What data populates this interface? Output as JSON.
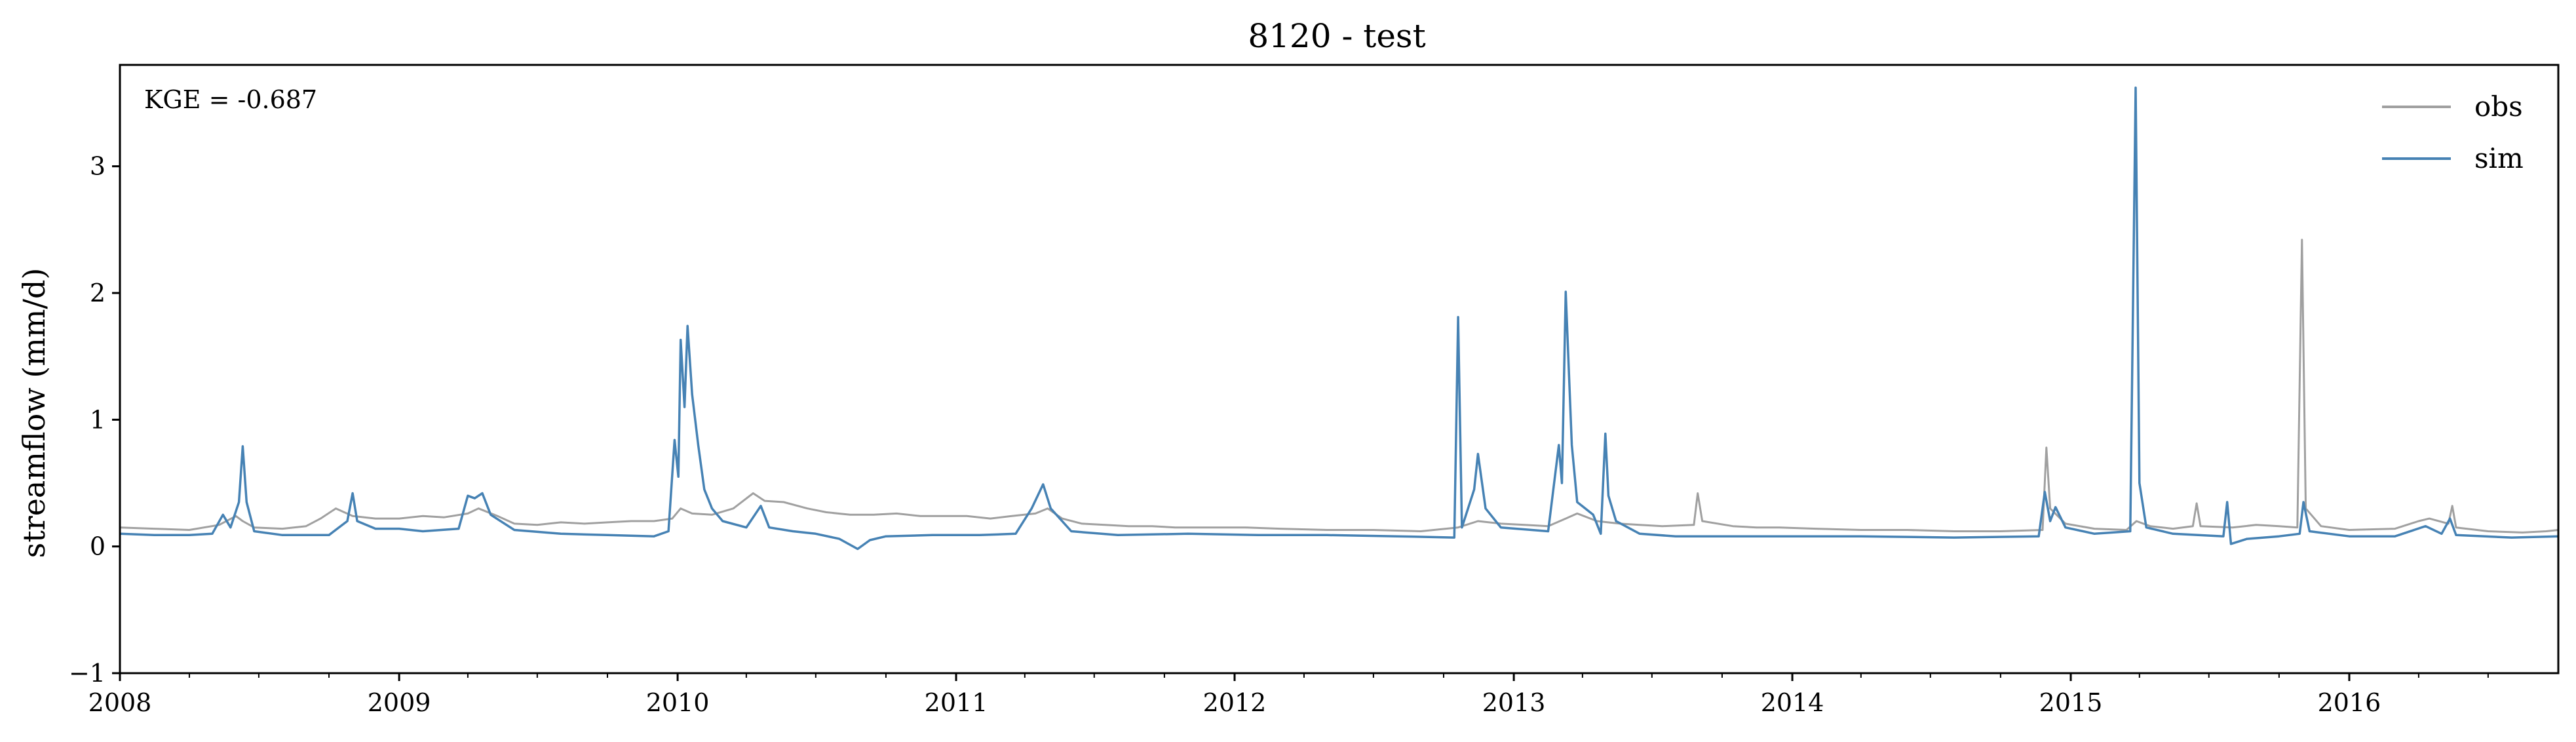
{
  "chart_data": {
    "type": "line",
    "title": "8120 - test",
    "xlabel": "",
    "ylabel": "streamflow (mm/d)",
    "annotation": "KGE = -0.687",
    "xlim": [
      "2008-01-01",
      "2016-10-01"
    ],
    "ylim": [
      -1,
      3.8
    ],
    "x_ticks": [
      "2008",
      "2009",
      "2010",
      "2011",
      "2012",
      "2013",
      "2014",
      "2015",
      "2016"
    ],
    "y_ticks": [
      -1,
      0,
      1,
      2,
      3
    ],
    "y_tick_labels": [
      "−1",
      "0",
      "1",
      "2",
      "3"
    ],
    "grid": false,
    "legend_position": "top-right",
    "series": [
      {
        "name": "obs",
        "color": "#a0a0a0",
        "points": [
          [
            "2008-01-01",
            0.15
          ],
          [
            "2008-02-15",
            0.14
          ],
          [
            "2008-04-01",
            0.13
          ],
          [
            "2008-05-10",
            0.17
          ],
          [
            "2008-06-01",
            0.24
          ],
          [
            "2008-06-10",
            0.2
          ],
          [
            "2008-06-25",
            0.15
          ],
          [
            "2008-08-01",
            0.14
          ],
          [
            "2008-09-01",
            0.16
          ],
          [
            "2008-09-20",
            0.22
          ],
          [
            "2008-10-10",
            0.3
          ],
          [
            "2008-11-01",
            0.24
          ],
          [
            "2008-12-01",
            0.22
          ],
          [
            "2009-01-01",
            0.22
          ],
          [
            "2009-02-01",
            0.24
          ],
          [
            "2009-03-01",
            0.23
          ],
          [
            "2009-04-01",
            0.26
          ],
          [
            "2009-04-15",
            0.3
          ],
          [
            "2009-05-10",
            0.24
          ],
          [
            "2009-06-01",
            0.18
          ],
          [
            "2009-07-01",
            0.17
          ],
          [
            "2009-08-01",
            0.19
          ],
          [
            "2009-09-01",
            0.18
          ],
          [
            "2009-10-01",
            0.19
          ],
          [
            "2009-11-01",
            0.2
          ],
          [
            "2009-12-01",
            0.2
          ],
          [
            "2009-12-25",
            0.22
          ],
          [
            "2010-01-05",
            0.3
          ],
          [
            "2010-01-20",
            0.26
          ],
          [
            "2010-02-15",
            0.25
          ],
          [
            "2010-03-15",
            0.3
          ],
          [
            "2010-04-10",
            0.42
          ],
          [
            "2010-04-25",
            0.36
          ],
          [
            "2010-05-20",
            0.35
          ],
          [
            "2010-06-20",
            0.3
          ],
          [
            "2010-07-15",
            0.27
          ],
          [
            "2010-08-15",
            0.25
          ],
          [
            "2010-09-15",
            0.25
          ],
          [
            "2010-10-15",
            0.26
          ],
          [
            "2010-11-15",
            0.24
          ],
          [
            "2010-12-15",
            0.24
          ],
          [
            "2011-01-15",
            0.24
          ],
          [
            "2011-02-15",
            0.22
          ],
          [
            "2011-03-15",
            0.24
          ],
          [
            "2011-04-15",
            0.26
          ],
          [
            "2011-05-01",
            0.3
          ],
          [
            "2011-05-20",
            0.22
          ],
          [
            "2011-06-15",
            0.18
          ],
          [
            "2011-07-15",
            0.17
          ],
          [
            "2011-08-15",
            0.16
          ],
          [
            "2011-09-15",
            0.16
          ],
          [
            "2011-10-15",
            0.15
          ],
          [
            "2011-11-15",
            0.15
          ],
          [
            "2011-12-15",
            0.15
          ],
          [
            "2012-01-15",
            0.15
          ],
          [
            "2012-03-01",
            0.14
          ],
          [
            "2012-05-01",
            0.13
          ],
          [
            "2012-07-01",
            0.13
          ],
          [
            "2012-09-01",
            0.12
          ],
          [
            "2012-10-20",
            0.15
          ],
          [
            "2012-11-15",
            0.2
          ],
          [
            "2012-12-15",
            0.18
          ],
          [
            "2013-01-15",
            0.17
          ],
          [
            "2013-02-15",
            0.16
          ],
          [
            "2013-03-10",
            0.22
          ],
          [
            "2013-03-25",
            0.26
          ],
          [
            "2013-04-20",
            0.2
          ],
          [
            "2013-05-20",
            0.18
          ],
          [
            "2013-06-15",
            0.17
          ],
          [
            "2013-07-15",
            0.16
          ],
          [
            "2013-08-25",
            0.17
          ],
          [
            "2013-08-30",
            0.42
          ],
          [
            "2013-09-05",
            0.2
          ],
          [
            "2013-10-15",
            0.16
          ],
          [
            "2013-11-15",
            0.15
          ],
          [
            "2013-12-15",
            0.15
          ],
          [
            "2014-02-01",
            0.14
          ],
          [
            "2014-04-01",
            0.13
          ],
          [
            "2014-06-01",
            0.13
          ],
          [
            "2014-08-01",
            0.12
          ],
          [
            "2014-10-01",
            0.12
          ],
          [
            "2014-11-25",
            0.13
          ],
          [
            "2014-11-30",
            0.78
          ],
          [
            "2014-12-05",
            0.3
          ],
          [
            "2014-12-25",
            0.18
          ],
          [
            "2015-02-01",
            0.14
          ],
          [
            "2015-03-15",
            0.13
          ],
          [
            "2015-03-28",
            0.2
          ],
          [
            "2015-04-15",
            0.16
          ],
          [
            "2015-05-15",
            0.14
          ],
          [
            "2015-06-10",
            0.16
          ],
          [
            "2015-06-15",
            0.34
          ],
          [
            "2015-06-20",
            0.16
          ],
          [
            "2015-08-01",
            0.15
          ],
          [
            "2015-09-01",
            0.17
          ],
          [
            "2015-10-01",
            0.16
          ],
          [
            "2015-10-25",
            0.15
          ],
          [
            "2015-10-31",
            2.42
          ],
          [
            "2015-11-05",
            0.3
          ],
          [
            "2015-11-25",
            0.16
          ],
          [
            "2016-01-01",
            0.13
          ],
          [
            "2016-03-01",
            0.14
          ],
          [
            "2016-04-01",
            0.2
          ],
          [
            "2016-04-15",
            0.22
          ],
          [
            "2016-05-10",
            0.18
          ],
          [
            "2016-05-15",
            0.32
          ],
          [
            "2016-05-20",
            0.15
          ],
          [
            "2016-07-01",
            0.12
          ],
          [
            "2016-08-15",
            0.11
          ],
          [
            "2016-09-15",
            0.12
          ],
          [
            "2016-10-01",
            0.13
          ]
        ]
      },
      {
        "name": "sim",
        "color": "#4682b4",
        "points": [
          [
            "2008-01-01",
            0.1
          ],
          [
            "2008-02-15",
            0.09
          ],
          [
            "2008-04-01",
            0.09
          ],
          [
            "2008-05-01",
            0.1
          ],
          [
            "2008-05-15",
            0.25
          ],
          [
            "2008-05-25",
            0.15
          ],
          [
            "2008-06-05",
            0.35
          ],
          [
            "2008-06-10",
            0.79
          ],
          [
            "2008-06-15",
            0.35
          ],
          [
            "2008-06-25",
            0.12
          ],
          [
            "2008-08-01",
            0.09
          ],
          [
            "2008-10-01",
            0.09
          ],
          [
            "2008-10-25",
            0.2
          ],
          [
            "2008-11-01",
            0.42
          ],
          [
            "2008-11-07",
            0.2
          ],
          [
            "2008-12-01",
            0.14
          ],
          [
            "2009-01-01",
            0.14
          ],
          [
            "2009-02-01",
            0.12
          ],
          [
            "2009-03-20",
            0.14
          ],
          [
            "2009-04-01",
            0.4
          ],
          [
            "2009-04-10",
            0.38
          ],
          [
            "2009-04-20",
            0.42
          ],
          [
            "2009-05-01",
            0.25
          ],
          [
            "2009-06-01",
            0.13
          ],
          [
            "2009-08-01",
            0.1
          ],
          [
            "2009-10-01",
            0.09
          ],
          [
            "2009-12-01",
            0.08
          ],
          [
            "2009-12-20",
            0.12
          ],
          [
            "2009-12-28",
            0.84
          ],
          [
            "2010-01-02",
            0.55
          ],
          [
            "2010-01-05",
            1.63
          ],
          [
            "2010-01-10",
            1.1
          ],
          [
            "2010-01-14",
            1.74
          ],
          [
            "2010-01-20",
            1.2
          ],
          [
            "2010-01-28",
            0.8
          ],
          [
            "2010-02-05",
            0.45
          ],
          [
            "2010-02-15",
            0.3
          ],
          [
            "2010-03-01",
            0.2
          ],
          [
            "2010-04-01",
            0.15
          ],
          [
            "2010-04-20",
            0.32
          ],
          [
            "2010-05-01",
            0.15
          ],
          [
            "2010-06-01",
            0.12
          ],
          [
            "2010-07-01",
            0.1
          ],
          [
            "2010-08-01",
            0.06
          ],
          [
            "2010-08-25",
            -0.02
          ],
          [
            "2010-09-10",
            0.05
          ],
          [
            "2010-10-01",
            0.08
          ],
          [
            "2010-12-01",
            0.09
          ],
          [
            "2011-02-01",
            0.09
          ],
          [
            "2011-03-20",
            0.1
          ],
          [
            "2011-04-10",
            0.3
          ],
          [
            "2011-04-25",
            0.49
          ],
          [
            "2011-05-05",
            0.3
          ],
          [
            "2011-06-01",
            0.12
          ],
          [
            "2011-08-01",
            0.09
          ],
          [
            "2011-11-01",
            0.1
          ],
          [
            "2012-02-01",
            0.09
          ],
          [
            "2012-05-01",
            0.09
          ],
          [
            "2012-08-01",
            0.08
          ],
          [
            "2012-10-15",
            0.07
          ],
          [
            "2012-10-20",
            1.81
          ],
          [
            "2012-10-25",
            0.15
          ],
          [
            "2012-11-10",
            0.45
          ],
          [
            "2012-11-15",
            0.73
          ],
          [
            "2012-11-25",
            0.3
          ],
          [
            "2012-12-15",
            0.15
          ],
          [
            "2013-02-15",
            0.12
          ],
          [
            "2013-03-01",
            0.8
          ],
          [
            "2013-03-05",
            0.5
          ],
          [
            "2013-03-10",
            2.01
          ],
          [
            "2013-03-18",
            0.8
          ],
          [
            "2013-03-25",
            0.35
          ],
          [
            "2013-04-15",
            0.25
          ],
          [
            "2013-04-25",
            0.1
          ],
          [
            "2013-05-01",
            0.89
          ],
          [
            "2013-05-05",
            0.4
          ],
          [
            "2013-05-15",
            0.2
          ],
          [
            "2013-06-15",
            0.1
          ],
          [
            "2013-08-01",
            0.08
          ],
          [
            "2013-12-01",
            0.08
          ],
          [
            "2014-04-01",
            0.08
          ],
          [
            "2014-08-01",
            0.07
          ],
          [
            "2014-11-20",
            0.08
          ],
          [
            "2014-11-28",
            0.43
          ],
          [
            "2014-12-05",
            0.2
          ],
          [
            "2014-12-12",
            0.31
          ],
          [
            "2014-12-25",
            0.15
          ],
          [
            "2015-02-01",
            0.1
          ],
          [
            "2015-03-20",
            0.12
          ],
          [
            "2015-03-27",
            3.62
          ],
          [
            "2015-04-01",
            0.5
          ],
          [
            "2015-04-10",
            0.15
          ],
          [
            "2015-05-15",
            0.1
          ],
          [
            "2015-07-20",
            0.08
          ],
          [
            "2015-07-25",
            0.35
          ],
          [
            "2015-07-30",
            0.02
          ],
          [
            "2015-08-20",
            0.06
          ],
          [
            "2015-10-01",
            0.08
          ],
          [
            "2015-10-28",
            0.1
          ],
          [
            "2015-11-02",
            0.35
          ],
          [
            "2015-11-10",
            0.12
          ],
          [
            "2016-01-01",
            0.08
          ],
          [
            "2016-03-01",
            0.08
          ],
          [
            "2016-04-10",
            0.16
          ],
          [
            "2016-05-01",
            0.1
          ],
          [
            "2016-05-12",
            0.22
          ],
          [
            "2016-05-20",
            0.09
          ],
          [
            "2016-08-01",
            0.07
          ],
          [
            "2016-10-01",
            0.08
          ]
        ]
      }
    ]
  }
}
